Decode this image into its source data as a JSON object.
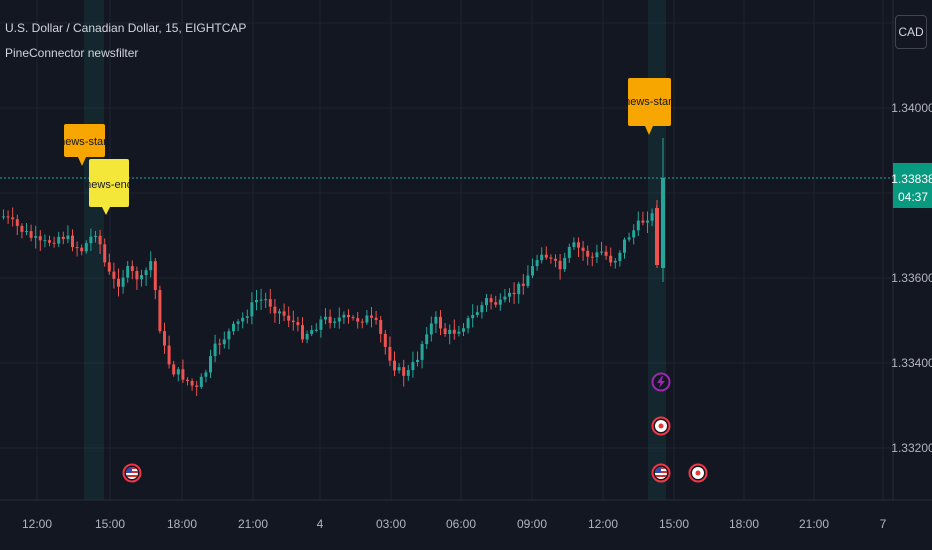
{
  "header": {
    "ticker": "U.S. Dollar / Canadian Dollar, 15, EIGHTCAP",
    "indicator": "PineConnector newsfilter"
  },
  "currency_button": "CAD",
  "price_scale": {
    "ticks": [
      "1.34000",
      "1.33600",
      "1.33400",
      "1.33200"
    ],
    "current_price": "1.33838",
    "countdown": "04:37"
  },
  "time_axis": {
    "labels": [
      "12:00",
      "15:00",
      "18:00",
      "21:00",
      "4",
      "03:00",
      "06:00",
      "09:00",
      "12:00",
      "15:00",
      "18:00",
      "21:00",
      "7"
    ]
  },
  "markers": {
    "news_start_1": "news-start",
    "news_end": "news-end",
    "news_start_2": "news-start"
  },
  "colors": {
    "background": "#131722",
    "up": "#26a69a",
    "down": "#ef5350",
    "news_start": "#f7a600",
    "news_end": "#f5e63a",
    "event_ring": "#f23645",
    "lightning": "#9c27b0"
  },
  "icons": {
    "us_flag": "us-flag-icon",
    "ca_flag": "canada-flag-icon",
    "lightning": "lightning-icon"
  }
}
